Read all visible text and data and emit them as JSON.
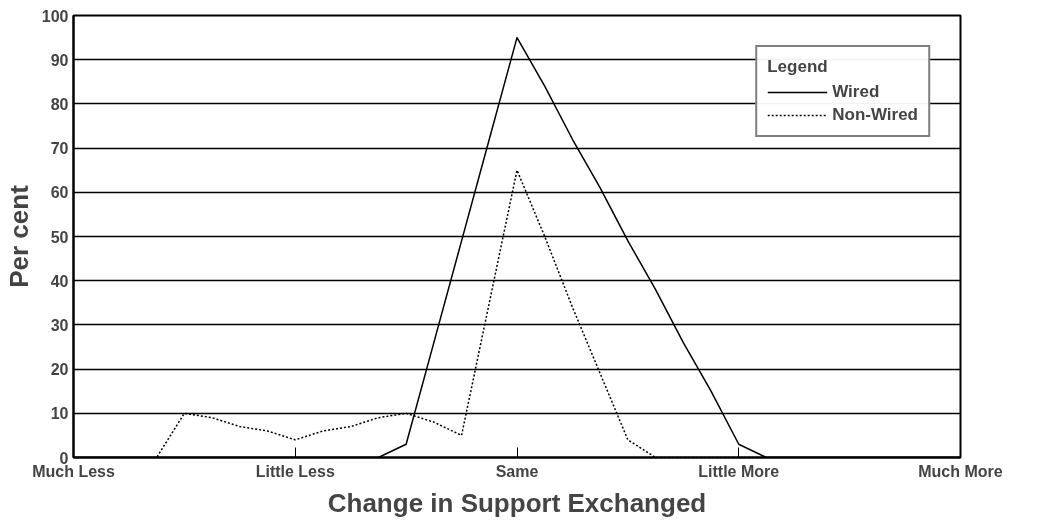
{
  "chart_data": {
    "type": "line",
    "xlabel": "Change in Support Exchanged",
    "ylabel": "Per cent",
    "legend_title": "Legend",
    "categories": [
      "Much Less",
      null,
      null,
      null,
      null,
      null,
      null,
      null,
      "Little Less",
      null,
      null,
      null,
      null,
      null,
      null,
      null,
      "Same",
      null,
      null,
      null,
      null,
      null,
      null,
      null,
      "Little More",
      null,
      null,
      null,
      null,
      null,
      null,
      null,
      "Much More"
    ],
    "ylim": [
      0,
      100
    ],
    "yticks": [
      0,
      10,
      20,
      30,
      40,
      50,
      60,
      70,
      80,
      90,
      100
    ],
    "grid": "y",
    "legend": "top right",
    "series": [
      {
        "name": "Wired",
        "color": "#000000",
        "line_style": "solid",
        "values": [
          0,
          0,
          0,
          0,
          0,
          0,
          0,
          0,
          0,
          0,
          0,
          0,
          3,
          26,
          49,
          72,
          95,
          84,
          72,
          61,
          49,
          38,
          26,
          15,
          3,
          0,
          0,
          0,
          0,
          0,
          0,
          0,
          0
        ]
      },
      {
        "name": "Non-Wired",
        "color": "#000000",
        "line_style": "dotted",
        "values": [
          0,
          0,
          0,
          0,
          10,
          9,
          7,
          6,
          4,
          6,
          7,
          9,
          10,
          8,
          5,
          35,
          65,
          50,
          34,
          19,
          4,
          0,
          0,
          0,
          0,
          0,
          0,
          0,
          0,
          0,
          0,
          0,
          0
        ]
      }
    ]
  }
}
